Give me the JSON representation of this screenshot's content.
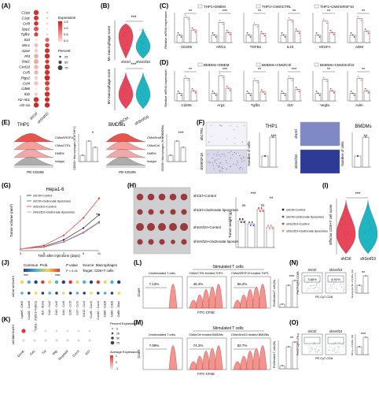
{
  "panels": {
    "A": "(A)",
    "B": "(B)",
    "C": "(C)",
    "D": "(D)",
    "E": "(E)",
    "F": "(F)",
    "G": "(G)",
    "H": "(H)",
    "I": "(I)",
    "J": "(J)",
    "K": "(K)",
    "L": "(L)",
    "M": "(M)",
    "N": "(N)",
    "O": "(O)"
  },
  "panelA": {
    "genes": [
      "C1qa",
      "C1qc",
      "Ccl9",
      "Spp1",
      "Tgfb1",
      "Il10",
      "Mrc1",
      "Apoe",
      "Pf4",
      "Stat1",
      "Cxcl10",
      "Ccl5",
      "Ptgs2",
      "Ccl4",
      "Cd86",
      "Il1b",
      "H2-Ab1",
      "H2-Aa"
    ],
    "groups": [
      "shCtrl",
      "shSrsf10"
    ],
    "legend_title_1": "Expression",
    "legend_ticks_1": [
      "1.5",
      "1.0",
      "0.5",
      "0.0"
    ],
    "legend_title_2": "Percent",
    "legend_ticks_2": [
      "25",
      "50",
      "75"
    ],
    "colors": {
      "high": "#d7191c",
      "low": "#fde0dd"
    }
  },
  "panelB": {
    "ylabel_top": "M1 macrophage score",
    "ylabel_bottom": "M2 macrophage score",
    "groups": [
      "shCtrl",
      "shSrsf10"
    ],
    "sig": "***",
    "colors": {
      "shCtrl": "#e8475b",
      "shSrsf10": "#1fb6c1"
    }
  },
  "panelC": {
    "legend": [
      "THP1+DMEM",
      "THP1+CMshCTRL",
      "THP1+CMshSRSF10"
    ],
    "ylabel": "Relative mRNA expression",
    "genes": [
      "CD206",
      "ARG1",
      "TGFB1",
      "IL10",
      "VEGFA",
      "ADM"
    ],
    "sigs": [
      "**",
      "***",
      "**",
      "**",
      "**",
      "**"
    ]
  },
  "panelD": {
    "legend": [
      "BMDMs+DMEM",
      "BMDMs+CMshCtrl",
      "BMDMs+CMshSrsf10"
    ],
    "ylabel": "Relative mRNA expression",
    "genes": [
      "Cd206",
      "Arg1",
      "Tgfb1",
      "Il10",
      "Vegfa",
      "Adm"
    ],
    "sigs": [
      "**",
      "***",
      "**",
      "***",
      "**",
      "**"
    ]
  },
  "panelE": {
    "title_left": "THP1",
    "title_right": "BMDMs",
    "xlabel": "PE-CD206",
    "legend_left": [
      "CMshSRSF10",
      "CMshCTRL",
      "DMEM",
      "Isotype"
    ],
    "legend_right": [
      "CMshSrsf10",
      "CMshCtrl",
      "DMEM",
      "Isotype"
    ],
    "bar_ylabel_left": "CD206+ Macrophages (% of THP1)",
    "bar_ylabel_right": "CD206+ Macrophages (% of BMDMs)",
    "sig_left": "*",
    "sig_right": "***"
  },
  "panelF": {
    "label_top_left": "shCTRL",
    "label_bottom_left": "shSRSF10",
    "label_top_right": "shCtrl",
    "label_bottom_right": "shSrsf10",
    "title_left": "THP1",
    "title_right": "BMDMs",
    "ylabel": "Number of cells",
    "sig_left": "***",
    "sig_right": "**"
  },
  "panelG": {
    "title": "Hepa1-6",
    "ylabel": "Tumor volume (mm³)",
    "xlabel": "Time after injections (days)",
    "legend": [
      "shCtrl+Control",
      "shCtrl+clodronate liposomes",
      "shSrsf10+Control",
      "shSrsf10+clodronate liposomes"
    ],
    "sig": "**"
  },
  "panelH": {
    "rows": [
      "shCtrl+Control",
      "shCtrl+clodronate liposomes",
      "shSrsf10+Control",
      "shSrsf10+clodronate liposomes"
    ],
    "ylabel": "Tumor weight (g)",
    "legend": [
      "shCtrl+Control",
      "shCtrl+clodronate liposomes",
      "shSrsf10+Control",
      "shSrsf10+clodronate liposomes"
    ],
    "sig_top": "***",
    "sig_ns": "ns",
    "sig_pair": "**"
  },
  "panelI": {
    "ylabel": "Effector CD8+T cell score",
    "groups": [
      "shCtrl",
      "shSrsf10"
    ],
    "sig": "***"
  },
  "panelJ": {
    "legend_prob": "Commun. Prob.",
    "legend_prob_ticks": [
      "min",
      "max"
    ],
    "legend_p": "P value",
    "legend_p_val": "P < 0.01",
    "source": "Source: Macrophages",
    "target": "Target: CD8+T cells",
    "rows": [
      "shSrsf10",
      "shCtrl"
    ],
    "pairs": [
      "Lgals9 - Cd45",
      "Cxcl16 - Cxcr6",
      "Tgfb1 - (Tgfbr1+Tgfbr2)",
      "Il10 - Il10ra",
      "Ccl2 - Ccr2",
      "Ccl3 - Ccr5",
      "Ccl4 - Ccr5",
      "Ccl5 - Ccr5",
      "Ccl7 - Ccr2",
      "Ccl12 - Ccr2",
      "Cxcl9 - Cxcr3",
      "Cxcl10 - Cxcr3",
      "Cd86 - Cd28",
      "Cd80 - Cd28",
      "Cd86 - Ctla4"
    ]
  },
  "panelK": {
    "rows": [
      "shSrsf10",
      "shCtrl"
    ],
    "genes": [
      "Gzmb",
      "Prf1",
      "Tnf",
      "Ifng",
      "Serpinb9",
      "Cxcr3",
      "Tcf7"
    ],
    "legend_title": "Percent Expressed",
    "legend_ticks": [
      "0",
      "25",
      "50",
      "75"
    ],
    "legend2_title": "Average Expression",
    "legend2_ticks": [
      "1",
      "0",
      "-1"
    ]
  },
  "panelL": {
    "title": "Stimulated T cells",
    "col_labels": [
      "Unstimulated T cells",
      "CMshCTRL treated THP1",
      "CMshSRSF10 treated THP1"
    ],
    "percents": [
      "7.13%",
      "46.4%",
      "66.2%"
    ],
    "xlabel": "FITC-CFSE",
    "ylabel": "Count",
    "bar_ylabel": "Proliferated T cells(%)",
    "sig": "***"
  },
  "panelM": {
    "title": "Stimulated T cells",
    "col_labels": [
      "Unstimulated T cells",
      "CMshCtrl treated BMDMs",
      "CMshSrsf10 treated BMDMs"
    ],
    "percents": [
      "7.09%",
      "74.2%",
      "82.7%"
    ],
    "xlabel": "FITC-CFSE",
    "ylabel": "Count",
    "bar_ylabel": "Proliferated T cells(%)",
    "sig": "**"
  },
  "panelN": {
    "groups": [
      "shCtrl",
      "shSrsf10"
    ],
    "percents": [
      "3.85%",
      "8.92%"
    ],
    "ylabel": "PerCP-Cy5.5-GZMB",
    "xlabel": "PE-Cy7-CD8",
    "bar_ylabel": "Granzyme B+ of CD8+ (%)",
    "sig": "**"
  },
  "panelO": {
    "groups": [
      "shCtrl",
      "shSrsf10"
    ],
    "ylabel": "PerCP-Cy5.5-IFN-γ",
    "xlabel": "PE-Cy7-CD8",
    "bar_ylabel": "IFN-γ+ of CD8+ (%)",
    "sig": "***"
  }
}
